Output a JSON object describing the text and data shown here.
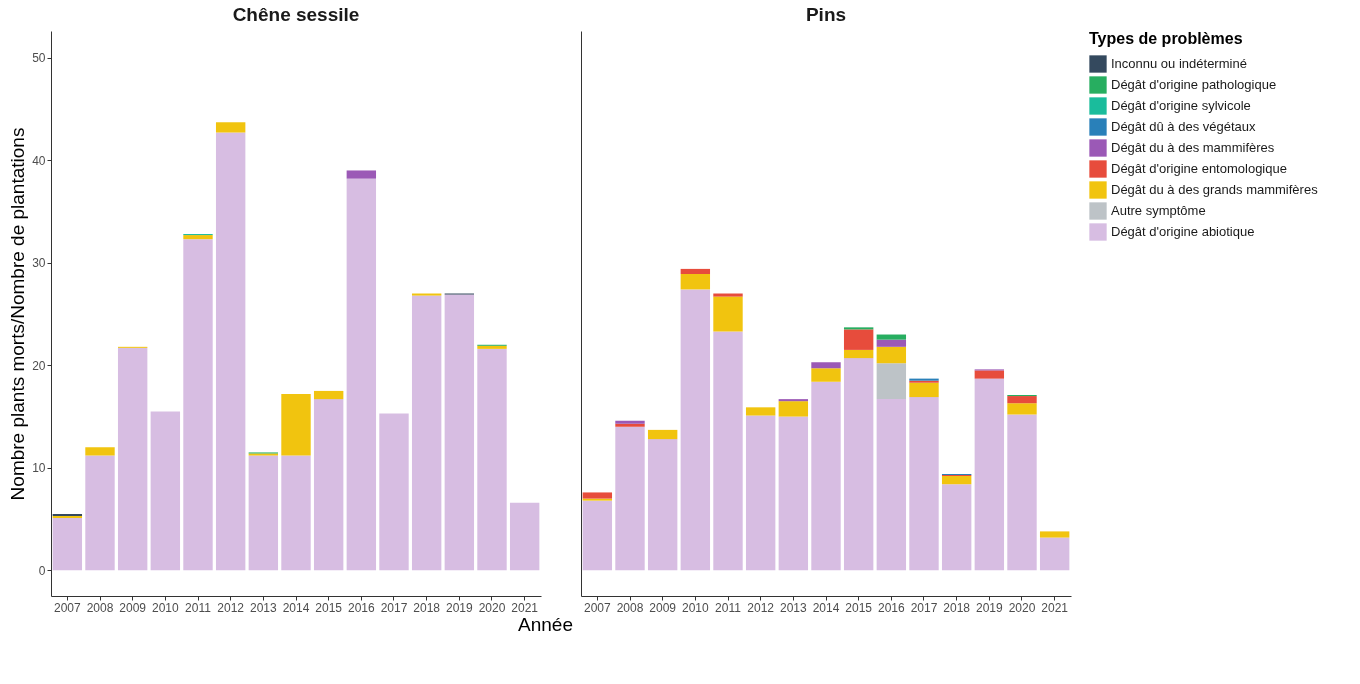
{
  "chart_data": [
    {
      "type": "bar",
      "title": "Chêne sessile",
      "xlabel": "Année",
      "ylabel": "Nombre plants morts/Nombre de plantations",
      "stacked": true,
      "legend": false,
      "ylim": [
        -2.5,
        52.6
      ],
      "yticks": [
        0,
        10,
        20,
        30,
        40,
        50
      ],
      "grid": false,
      "categories": [
        "2007",
        "2008",
        "2009",
        "2010",
        "2011",
        "2012",
        "2013",
        "2014",
        "2015",
        "2016",
        "2017",
        "2018",
        "2019",
        "2020",
        "2021"
      ],
      "series": [
        {
          "color": "#d7bde2",
          "values": [
            5.1,
            11.2,
            21.7,
            15.5,
            32.3,
            42.7,
            11.2,
            11.2,
            16.7,
            38.2,
            15.3,
            26.8,
            26.9,
            21.6,
            6.6
          ]
        },
        {
          "color": "#f1c40f",
          "values": [
            0.2,
            0.8,
            0.1,
            null,
            0.4,
            1.0,
            0.2,
            6.0,
            0.8,
            null,
            null,
            0.2,
            null,
            0.3,
            null
          ]
        },
        {
          "color": "#9b59b6",
          "values": [
            null,
            null,
            null,
            null,
            null,
            null,
            null,
            null,
            null,
            0.8,
            null,
            null,
            null,
            null,
            null
          ]
        },
        {
          "color": "#1abc9c",
          "values": [
            null,
            null,
            null,
            null,
            0.1,
            null,
            null,
            null,
            null,
            null,
            null,
            null,
            null,
            null,
            null
          ]
        },
        {
          "color": "#27ae60",
          "values": [
            null,
            null,
            null,
            null,
            null,
            null,
            0.1,
            null,
            null,
            null,
            null,
            null,
            null,
            0.1,
            null
          ]
        },
        {
          "color": "#34495e",
          "values": [
            0.2,
            null,
            null,
            null,
            null,
            null,
            null,
            null,
            null,
            null,
            null,
            null,
            0.1,
            null,
            null
          ]
        }
      ]
    },
    {
      "type": "bar",
      "title": "Pins",
      "stacked": true,
      "legend": "right",
      "legend_title": "Types de problèmes",
      "ylim": [
        -2.5,
        52.6
      ],
      "yticks": [
        0,
        10,
        20,
        30,
        40,
        50
      ],
      "tick_labels": "x",
      "grid": false,
      "categories": [
        "2007",
        "2008",
        "2009",
        "2010",
        "2011",
        "2012",
        "2013",
        "2014",
        "2015",
        "2016",
        "2017",
        "2018",
        "2019",
        "2020",
        "2021"
      ],
      "series": [
        {
          "name": "Dégât d'origine abiotique",
          "color": "#d7bde2",
          "values": [
            6.8,
            14.0,
            12.8,
            27.4,
            23.3,
            15.1,
            15.0,
            18.4,
            20.7,
            16.7,
            16.9,
            8.4,
            18.7,
            15.2,
            3.2
          ]
        },
        {
          "name": "Autre symptôme",
          "color": "#bdc3c7",
          "values": [
            null,
            null,
            null,
            null,
            null,
            null,
            null,
            null,
            null,
            3.5,
            null,
            null,
            null,
            null,
            null
          ]
        },
        {
          "name": "Dégât du à des grands mammifères",
          "color": "#f1c40f",
          "values": [
            0.2,
            null,
            0.9,
            1.5,
            3.4,
            0.8,
            1.5,
            1.3,
            0.8,
            1.6,
            1.4,
            0.8,
            null,
            1.1,
            0.6
          ]
        },
        {
          "name": "Dégât d'origine entomologique",
          "color": "#e74c3c",
          "values": [
            0.6,
            0.3,
            null,
            0.5,
            0.3,
            null,
            null,
            null,
            2.0,
            null,
            0.2,
            0.1,
            0.8,
            0.7,
            null
          ]
        },
        {
          "name": "Dégât du à des mammifères",
          "color": "#9b59b6",
          "values": [
            null,
            0.3,
            null,
            null,
            null,
            null,
            0.2,
            0.6,
            null,
            0.7,
            null,
            null,
            0.1,
            null,
            null
          ]
        },
        {
          "name": "Dégât dû à des végétaux",
          "color": "#2980b9",
          "values": [
            null,
            null,
            null,
            null,
            null,
            null,
            null,
            null,
            null,
            null,
            0.2,
            0.1,
            null,
            null,
            null
          ]
        },
        {
          "name": "Dégât d'origine sylvicole",
          "color": "#1abc9c",
          "values": [
            null,
            null,
            null,
            null,
            null,
            null,
            null,
            null,
            null,
            null,
            null,
            null,
            null,
            null,
            null
          ]
        },
        {
          "name": "Dégât d'origine pathologique",
          "color": "#27ae60",
          "values": [
            null,
            null,
            null,
            null,
            null,
            null,
            null,
            null,
            0.2,
            0.5,
            null,
            null,
            null,
            0.1,
            null
          ]
        },
        {
          "name": "Inconnu ou indéterminé",
          "color": "#34495e",
          "values": [
            null,
            null,
            null,
            null,
            null,
            null,
            null,
            null,
            null,
            null,
            null,
            null,
            null,
            null,
            null
          ]
        }
      ]
    }
  ]
}
